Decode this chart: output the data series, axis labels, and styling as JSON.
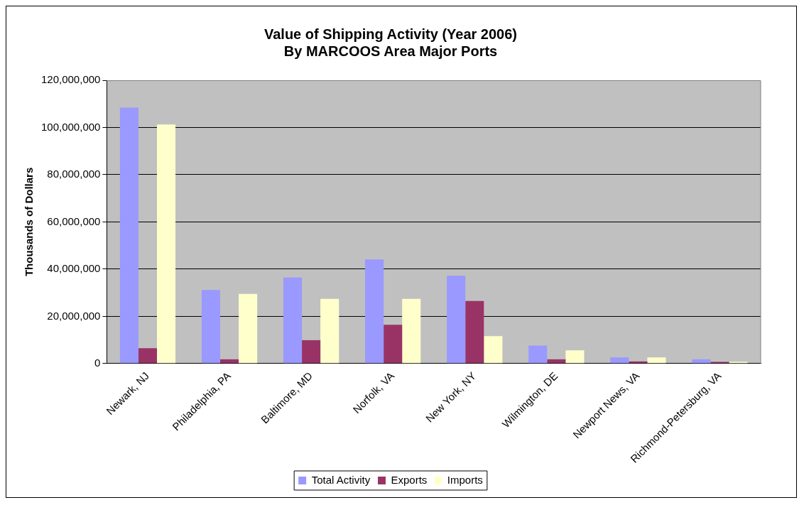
{
  "chart_data": {
    "type": "bar",
    "title": "Value of Shipping Activity (Year 2006)\nBy MARCOOS Area Major Ports",
    "ylabel": "Thousands of Dollars",
    "categories": [
      "Newark, NJ",
      "Philadelphia, PA",
      "Baltimore, MD",
      "Norfolk, VA",
      "New York, NY",
      "Wilmington, DE",
      "Newport News, VA",
      "Richmond-Petersburg, VA"
    ],
    "series": [
      {
        "name": "Total Activity",
        "color": "#9999ff",
        "values": [
          108400000,
          31200000,
          36400000,
          44100000,
          37200000,
          7600000,
          2600000,
          1800000
        ]
      },
      {
        "name": "Exports",
        "color": "#993366",
        "values": [
          6500000,
          1800000,
          9900000,
          16400000,
          26500000,
          1800000,
          900000,
          700000
        ]
      },
      {
        "name": "Imports",
        "color": "#ffffcc",
        "values": [
          101300000,
          29500000,
          27400000,
          27400000,
          11600000,
          5600000,
          2600000,
          800000
        ]
      }
    ],
    "ylim": [
      0,
      120000000
    ],
    "yticks": [
      {
        "value": 0,
        "label": "0"
      },
      {
        "value": 20000000,
        "label": "20,000,000"
      },
      {
        "value": 40000000,
        "label": "40,000,000"
      },
      {
        "value": 60000000,
        "label": "60,000,000"
      },
      {
        "value": 80000000,
        "label": "80,000,000"
      },
      {
        "value": 100000000,
        "label": "100,000,000"
      },
      {
        "value": 120000000,
        "label": "120,000,000"
      }
    ],
    "grid": "y",
    "legend": "bottom"
  }
}
